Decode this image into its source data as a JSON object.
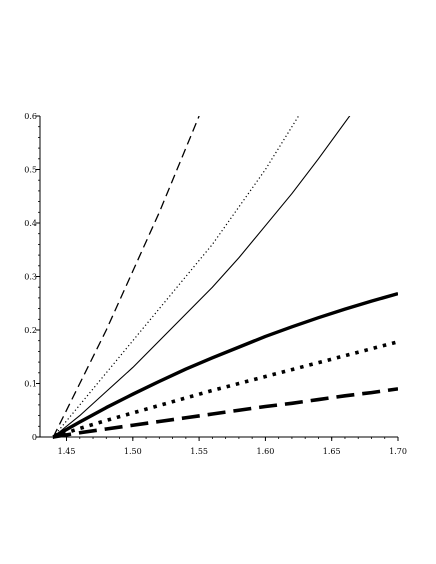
{
  "chart_data": {
    "type": "line",
    "title": "",
    "xlabel": "",
    "ylabel": "",
    "xlim": [
      1.43,
      1.7
    ],
    "ylim": [
      0,
      0.6
    ],
    "grid": false,
    "x_ticks": [
      {
        "value": 1.45,
        "label": "1.45"
      },
      {
        "value": 1.5,
        "label": "1.50"
      },
      {
        "value": 1.55,
        "label": "1.55"
      },
      {
        "value": 1.6,
        "label": "1.60"
      },
      {
        "value": 1.65,
        "label": "1.65"
      },
      {
        "value": 1.7,
        "label": "1.70"
      }
    ],
    "y_ticks": [
      {
        "value": 0,
        "label": "0"
      },
      {
        "value": 0.1,
        "label": "0.1"
      },
      {
        "value": 0.2,
        "label": "0.2"
      },
      {
        "value": 0.3,
        "label": "0.3"
      },
      {
        "value": 0.4,
        "label": "0.4"
      },
      {
        "value": 0.5,
        "label": "0.5"
      },
      {
        "value": 0.6,
        "label": "0.6"
      }
    ],
    "series": [
      {
        "style": "thin-dashed",
        "color": "#000000",
        "x": [
          1.44,
          1.46,
          1.48,
          1.5,
          1.52,
          1.54,
          1.55
        ],
        "y": [
          0.0,
          0.1,
          0.2,
          0.31,
          0.42,
          0.54,
          0.6
        ]
      },
      {
        "style": "thin-dotted",
        "color": "#000000",
        "x": [
          1.44,
          1.46,
          1.48,
          1.5,
          1.52,
          1.54,
          1.56,
          1.58,
          1.6,
          1.625
        ],
        "y": [
          0.0,
          0.06,
          0.12,
          0.18,
          0.24,
          0.3,
          0.36,
          0.43,
          0.5,
          0.6
        ]
      },
      {
        "style": "thin-solid",
        "color": "#000000",
        "x": [
          1.44,
          1.46,
          1.48,
          1.5,
          1.52,
          1.54,
          1.56,
          1.58,
          1.6,
          1.62,
          1.64,
          1.665
        ],
        "y": [
          0.0,
          0.04,
          0.085,
          0.13,
          0.18,
          0.23,
          0.28,
          0.335,
          0.395,
          0.455,
          0.52,
          0.605
        ]
      },
      {
        "style": "thick-solid",
        "color": "#000000",
        "x": [
          1.44,
          1.46,
          1.48,
          1.5,
          1.52,
          1.54,
          1.56,
          1.58,
          1.6,
          1.62,
          1.64,
          1.66,
          1.68,
          1.7
        ],
        "y": [
          0.0,
          0.028,
          0.055,
          0.08,
          0.104,
          0.127,
          0.148,
          0.168,
          0.188,
          0.206,
          0.223,
          0.239,
          0.254,
          0.268
        ]
      },
      {
        "style": "thick-dotted",
        "color": "#000000",
        "x": [
          1.44,
          1.46,
          1.48,
          1.5,
          1.52,
          1.54,
          1.56,
          1.58,
          1.6,
          1.62,
          1.64,
          1.66,
          1.68,
          1.7
        ],
        "y": [
          0.0,
          0.016,
          0.031,
          0.045,
          0.059,
          0.073,
          0.087,
          0.1,
          0.113,
          0.126,
          0.139,
          0.152,
          0.165,
          0.178
        ]
      },
      {
        "style": "thick-dashed",
        "color": "#000000",
        "x": [
          1.44,
          1.46,
          1.48,
          1.5,
          1.52,
          1.54,
          1.56,
          1.58,
          1.6,
          1.62,
          1.64,
          1.66,
          1.68,
          1.7
        ],
        "y": [
          0.0,
          0.008,
          0.015,
          0.022,
          0.029,
          0.036,
          0.043,
          0.05,
          0.057,
          0.063,
          0.07,
          0.077,
          0.083,
          0.09
        ]
      }
    ]
  }
}
